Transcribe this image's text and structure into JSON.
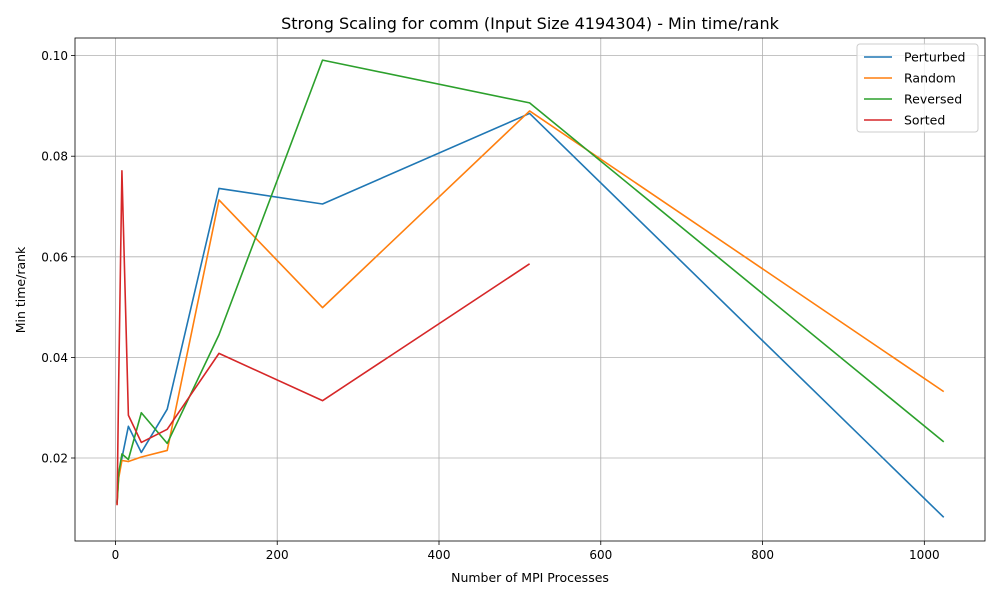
{
  "chart_data": {
    "type": "line",
    "title": "Strong Scaling for comm (Input Size 4194304) - Min time/rank",
    "xlabel": "Number of MPI Processes",
    "ylabel": "Min time/rank",
    "xlim": [
      -50,
      1075
    ],
    "ylim": [
      0.0035,
      0.1035
    ],
    "xticks": [
      0,
      200,
      400,
      600,
      800,
      1000
    ],
    "yticks": [
      0.02,
      0.04,
      0.06,
      0.08,
      0.1
    ],
    "xtick_labels": [
      "0",
      "200",
      "400",
      "600",
      "800",
      "1000"
    ],
    "ytick_labels": [
      "0.02",
      "0.04",
      "0.06",
      "0.08",
      "0.10"
    ],
    "grid": true,
    "legend_position": "top-right",
    "series": [
      {
        "name": "Perturbed",
        "color": "#1f77b4",
        "x": [
          2,
          4,
          8,
          16,
          32,
          64,
          128,
          256,
          512,
          1024
        ],
        "y": [
          0.0112,
          0.0165,
          0.02,
          0.0263,
          0.0211,
          0.0297,
          0.0736,
          0.0705,
          0.0885,
          0.0082
        ]
      },
      {
        "name": "Random",
        "color": "#ff7f0e",
        "x": [
          2,
          4,
          8,
          16,
          32,
          64,
          128,
          256,
          512,
          1024
        ],
        "y": [
          0.0108,
          0.016,
          0.0195,
          0.0193,
          0.0202,
          0.0215,
          0.0713,
          0.0499,
          0.089,
          0.0332
        ]
      },
      {
        "name": "Reversed",
        "color": "#2ca02c",
        "x": [
          2,
          4,
          8,
          16,
          32,
          64,
          128,
          256,
          512,
          1024
        ],
        "y": [
          0.011,
          0.017,
          0.0208,
          0.0197,
          0.029,
          0.0229,
          0.0445,
          0.0991,
          0.0906,
          0.0232
        ]
      },
      {
        "name": "Sorted",
        "color": "#d62728",
        "x": [
          2,
          4,
          8,
          16,
          32,
          64,
          128,
          256,
          512
        ],
        "y": [
          0.0106,
          0.035,
          0.0771,
          0.0285,
          0.0231,
          0.0257,
          0.0408,
          0.0314,
          0.0586
        ]
      }
    ]
  }
}
